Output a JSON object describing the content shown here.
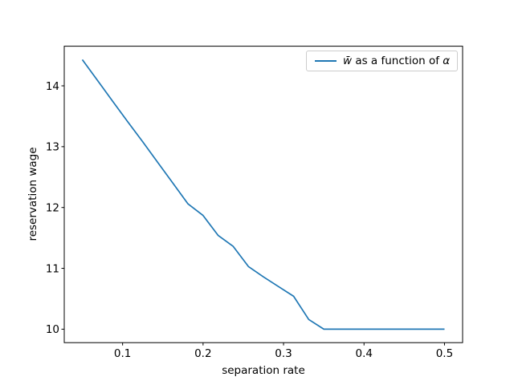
{
  "chart_data": {
    "type": "line",
    "title": "",
    "xlabel": "separation rate",
    "ylabel": "reservation wage",
    "x": [
      0.05,
      0.0688,
      0.0875,
      0.1063,
      0.125,
      0.1438,
      0.1625,
      0.1813,
      0.2,
      0.2188,
      0.2375,
      0.2563,
      0.275,
      0.2938,
      0.3125,
      0.3313,
      0.35,
      0.3688,
      0.3875,
      0.4063,
      0.425,
      0.4438,
      0.4625,
      0.4813,
      0.5
    ],
    "series": [
      {
        "name": "w̄ as a function of α",
        "color": "#1f77b4",
        "values": [
          14.43,
          14.09,
          13.75,
          13.41,
          13.08,
          12.74,
          12.4,
          12.06,
          11.87,
          11.54,
          11.36,
          11.03,
          10.86,
          10.7,
          10.54,
          10.16,
          10.0,
          10.0,
          10.0,
          10.0,
          10.0,
          10.0,
          10.0,
          10.0,
          10.0
        ]
      }
    ],
    "xlim": [
      0.0275,
      0.5225
    ],
    "ylim": [
      9.7785,
      14.6515
    ],
    "xticks": [
      0.1,
      0.2,
      0.3,
      0.4,
      0.5
    ],
    "xtick_labels": [
      "0.1",
      "0.2",
      "0.3",
      "0.4",
      "0.5"
    ],
    "yticks": [
      10,
      11,
      12,
      13,
      14
    ],
    "ytick_labels": [
      "10",
      "11",
      "12",
      "13",
      "14"
    ],
    "grid": false,
    "legend_position": "upper right"
  },
  "legend": {
    "w_symbol": "w̄",
    "middle_text": " as a function of ",
    "alpha_symbol": "α",
    "full_label": "w̄ as a function of α",
    "line_color": "#1f77b4"
  }
}
